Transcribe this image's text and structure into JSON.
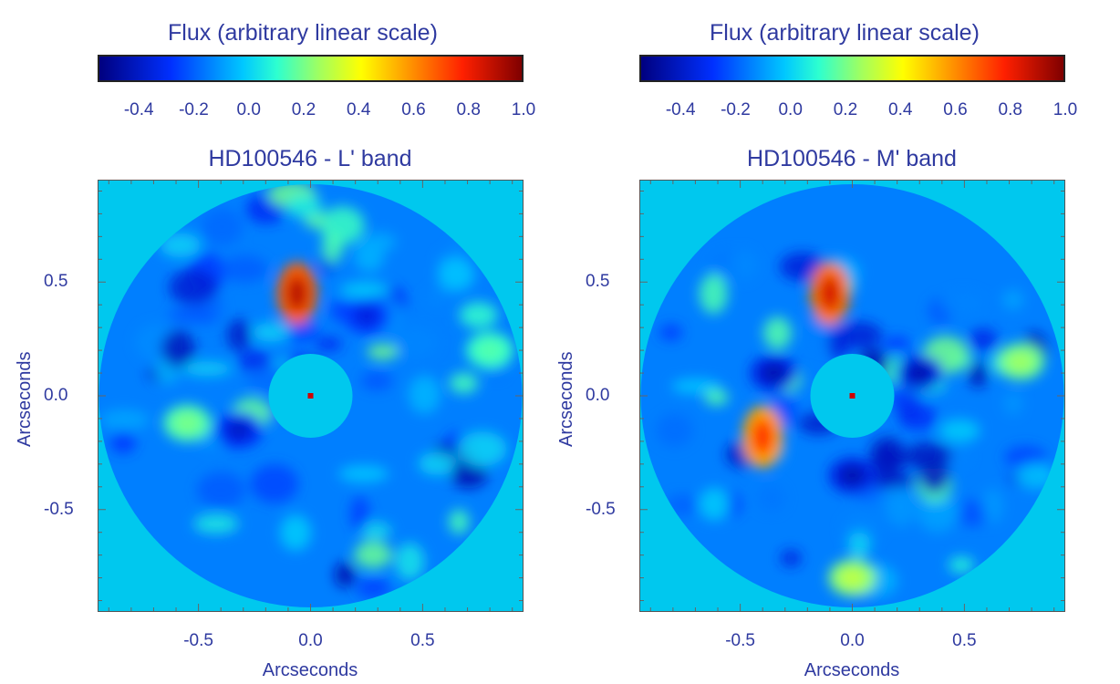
{
  "colorbar": {
    "title": "Flux (arbitrary linear scale)",
    "range": [
      -0.55,
      1.0
    ],
    "ticks": [
      "-0.4",
      "-0.2",
      "0.0",
      "0.2",
      "0.4",
      "0.6",
      "0.8",
      "1.0"
    ]
  },
  "chart_data": [
    {
      "type": "heatmap",
      "title": "HD100546 - L' band",
      "xlabel": "Arcseconds",
      "ylabel": "Arcseconds",
      "xlim": [
        -0.95,
        0.95
      ],
      "ylim": [
        -0.95,
        0.95
      ],
      "xticks": [
        "-0.5",
        "0.0",
        "0.5"
      ],
      "yticks": [
        "0.5",
        "0.0",
        "-0.5"
      ],
      "colormap": "jet",
      "features": [
        {
          "x": -0.06,
          "y": 0.45,
          "flux": 0.9
        },
        {
          "x": 0.25,
          "y": 0.35,
          "flux": -0.35
        },
        {
          "x": -0.32,
          "y": -0.15,
          "flux": -0.4
        },
        {
          "x": -0.55,
          "y": -0.12,
          "flux": 0.2
        },
        {
          "x": 0.8,
          "y": 0.2,
          "flux": 0.15
        }
      ],
      "star": {
        "x": 0.0,
        "y": 0.0
      }
    },
    {
      "type": "heatmap",
      "title": "HD100546 - M' band",
      "xlabel": "Arcseconds",
      "ylabel": "Arcseconds",
      "xlim": [
        -0.95,
        0.95
      ],
      "ylim": [
        -0.95,
        0.95
      ],
      "xticks": [
        "-0.5",
        "0.0",
        "0.5"
      ],
      "yticks": [
        "0.5",
        "0.0",
        "-0.5"
      ],
      "colormap": "jet",
      "features": [
        {
          "x": -0.1,
          "y": 0.45,
          "flux": 0.85
        },
        {
          "x": -0.4,
          "y": -0.18,
          "flux": 0.75
        },
        {
          "x": -0.35,
          "y": 0.1,
          "flux": -0.45
        },
        {
          "x": 0.3,
          "y": 0.1,
          "flux": -0.45
        },
        {
          "x": 0.0,
          "y": -0.35,
          "flux": -0.45
        },
        {
          "x": 0.75,
          "y": 0.15,
          "flux": 0.25
        },
        {
          "x": 0.0,
          "y": -0.8,
          "flux": 0.3
        }
      ],
      "star": {
        "x": 0.0,
        "y": 0.0
      }
    }
  ]
}
